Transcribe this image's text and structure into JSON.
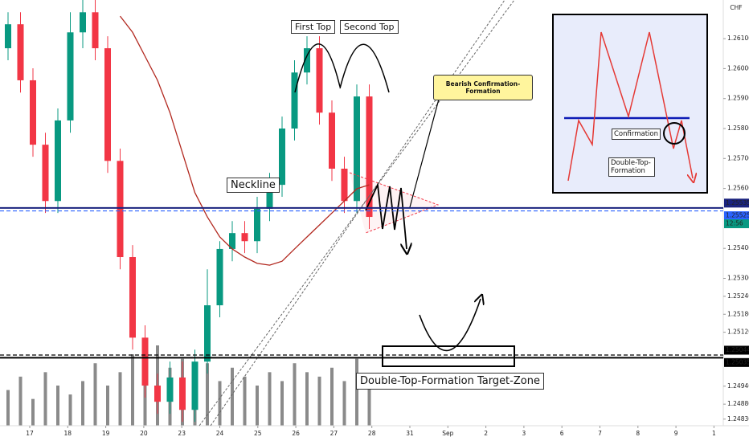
{
  "chart_data": {
    "type": "candlestick",
    "currency": "CHF",
    "countdown": "12:56",
    "open": [
      1.26068,
      1.26148,
      1.25961,
      1.25746,
      1.25558,
      1.25827,
      1.26121,
      1.26188,
      1.26068,
      1.25692,
      1.25371,
      1.25102,
      1.24942,
      1.24888,
      1.24969,
      1.24861,
      1.25022,
      1.2521,
      1.25398,
      1.25451,
      1.25424,
      1.25532,
      1.25612,
      1.258,
      1.25987,
      1.26068,
      1.25853,
      1.25666,
      1.25558,
      1.25907
    ],
    "high": [
      1.26188,
      1.26188,
      1.26001,
      1.25786,
      1.25867,
      1.26188,
      1.26229,
      1.26229,
      1.26108,
      1.25733,
      1.25411,
      1.25143,
      1.24982,
      1.25022,
      1.25022,
      1.25062,
      1.2533,
      1.25424,
      1.25491,
      1.25491,
      1.25572,
      1.25652,
      1.2584,
      1.26028,
      1.26108,
      1.26108,
      1.25894,
      1.25706,
      1.25947,
      1.25947
    ],
    "low": [
      1.26028,
      1.2592,
      1.25706,
      1.25518,
      1.25518,
      1.25786,
      1.26068,
      1.26028,
      1.25652,
      1.2533,
      1.25062,
      1.24902,
      1.24848,
      1.24848,
      1.24821,
      1.24821,
      1.24982,
      1.2517,
      1.25357,
      1.25384,
      1.25384,
      1.25491,
      1.25572,
      1.2576,
      1.25947,
      1.25813,
      1.25625,
      1.25518,
      1.25518,
      1.25465
    ],
    "close": [
      1.26148,
      1.25961,
      1.25746,
      1.25558,
      1.25827,
      1.26121,
      1.26188,
      1.26068,
      1.25692,
      1.25371,
      1.25102,
      1.24942,
      1.24888,
      1.24969,
      1.24861,
      1.25022,
      1.2521,
      1.25398,
      1.25451,
      1.25424,
      1.25532,
      1.25612,
      1.258,
      1.25987,
      1.26068,
      1.25853,
      1.25666,
      1.25558,
      1.25907,
      1.25505
    ],
    "up_color": "#089981",
    "down_color": "#f23645",
    "ma": {
      "color": "#b2281f",
      "values": [
        null,
        null,
        null,
        null,
        null,
        null,
        null,
        null,
        null,
        1.26175,
        1.26121,
        1.26041,
        1.25961,
        1.25853,
        1.25719,
        1.25586,
        1.25505,
        1.25438,
        1.25398,
        1.25371,
        1.2535,
        1.25344,
        1.25357,
        1.25398,
        1.25438,
        1.25478,
        1.25518,
        1.25558,
        1.25599,
        1.25612
      ]
    },
    "volume": {
      "color": "#8a8a8a",
      "values": [
        40,
        55,
        30,
        60,
        45,
        35,
        50,
        70,
        45,
        60,
        80,
        55,
        90,
        65,
        75,
        60,
        70,
        50,
        65,
        55,
        45,
        60,
        50,
        70,
        60,
        55,
        65,
        50,
        75,
        45
      ]
    },
    "ylim": [
      1.24808,
      1.26229
    ],
    "yticks": [
      {
        "value": 1.261,
        "label": "1.26100"
      },
      {
        "value": 1.26,
        "label": "1.26000"
      },
      {
        "value": 1.259,
        "label": "1.25900"
      },
      {
        "value": 1.258,
        "label": "1.25800"
      },
      {
        "value": 1.257,
        "label": "1.25700"
      },
      {
        "value": 1.256,
        "label": "1.25600"
      },
      {
        "value": 1.254,
        "label": "1.25400"
      },
      {
        "value": 1.253,
        "label": "1.25300"
      },
      {
        "value": 1.2524,
        "label": "1.25240"
      },
      {
        "value": 1.2518,
        "label": "1.25180"
      },
      {
        "value": 1.2512,
        "label": "1.25120"
      },
      {
        "value": 1.2494,
        "label": "1.24940"
      },
      {
        "value": 1.2488,
        "label": "1.24880"
      },
      {
        "value": 1.2483,
        "label": "1.24830"
      }
    ],
    "xticks": [
      "17",
      "18",
      "19",
      "20",
      "23",
      "24",
      "25",
      "26",
      "27",
      "28",
      "31",
      "Sep",
      "2",
      "3",
      "6",
      "7",
      "8",
      "9",
      "1"
    ],
    "levels": [
      {
        "value": 1.25535,
        "color": "#1a237e",
        "dash": false
      },
      {
        "value": 1.25525,
        "color": "#2962ff",
        "dash": true
      },
      {
        "value": 1.25044,
        "color": "#000000",
        "dash": true
      },
      {
        "value": 1.25035,
        "color": "#000000",
        "dash": false
      }
    ],
    "annotations": {
      "first_top": "First Top",
      "second_top": "Second Top",
      "neckline": "Neckline",
      "bearish": "Bearish Confirmation-Formation",
      "target": "Double-Top-Formation Target-Zone"
    },
    "inset": {
      "confirmation": "Confirmation",
      "formation": "Double-Top-Formation"
    }
  }
}
